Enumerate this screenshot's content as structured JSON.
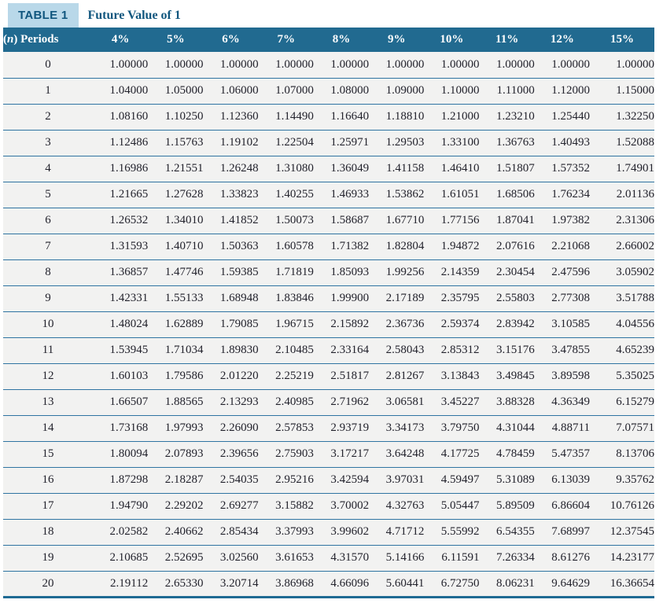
{
  "title": {
    "badge": "TABLE 1",
    "text": "Future Value of 1"
  },
  "table": {
    "periods_header": {
      "prefix": "(",
      "italic": "n",
      "suffix": ") Periods"
    },
    "rate_headers": [
      "4%",
      "5%",
      "6%",
      "7%",
      "8%",
      "9%",
      "10%",
      "11%",
      "12%",
      "15%"
    ],
    "rows": [
      {
        "period": "0",
        "values": [
          "1.00000",
          "1.00000",
          "1.00000",
          "1.00000",
          "1.00000",
          "1.00000",
          "1.00000",
          "1.00000",
          "1.00000",
          "1.00000"
        ]
      },
      {
        "period": "1",
        "values": [
          "1.04000",
          "1.05000",
          "1.06000",
          "1.07000",
          "1.08000",
          "1.09000",
          "1.10000",
          "1.11000",
          "1.12000",
          "1.15000"
        ]
      },
      {
        "period": "2",
        "values": [
          "1.08160",
          "1.10250",
          "1.12360",
          "1.14490",
          "1.16640",
          "1.18810",
          "1.21000",
          "1.23210",
          "1.25440",
          "1.32250"
        ]
      },
      {
        "period": "3",
        "values": [
          "1.12486",
          "1.15763",
          "1.19102",
          "1.22504",
          "1.25971",
          "1.29503",
          "1.33100",
          "1.36763",
          "1.40493",
          "1.52088"
        ]
      },
      {
        "period": "4",
        "values": [
          "1.16986",
          "1.21551",
          "1.26248",
          "1.31080",
          "1.36049",
          "1.41158",
          "1.46410",
          "1.51807",
          "1.57352",
          "1.74901"
        ]
      },
      {
        "period": "5",
        "values": [
          "1.21665",
          "1.27628",
          "1.33823",
          "1.40255",
          "1.46933",
          "1.53862",
          "1.61051",
          "1.68506",
          "1.76234",
          "2.01136"
        ]
      },
      {
        "period": "6",
        "values": [
          "1.26532",
          "1.34010",
          "1.41852",
          "1.50073",
          "1.58687",
          "1.67710",
          "1.77156",
          "1.87041",
          "1.97382",
          "2.31306"
        ]
      },
      {
        "period": "7",
        "values": [
          "1.31593",
          "1.40710",
          "1.50363",
          "1.60578",
          "1.71382",
          "1.82804",
          "1.94872",
          "2.07616",
          "2.21068",
          "2.66002"
        ]
      },
      {
        "period": "8",
        "values": [
          "1.36857",
          "1.47746",
          "1.59385",
          "1.71819",
          "1.85093",
          "1.99256",
          "2.14359",
          "2.30454",
          "2.47596",
          "3.05902"
        ]
      },
      {
        "period": "9",
        "values": [
          "1.42331",
          "1.55133",
          "1.68948",
          "1.83846",
          "1.99900",
          "2.17189",
          "2.35795",
          "2.55803",
          "2.77308",
          "3.51788"
        ]
      },
      {
        "period": "10",
        "values": [
          "1.48024",
          "1.62889",
          "1.79085",
          "1.96715",
          "2.15892",
          "2.36736",
          "2.59374",
          "2.83942",
          "3.10585",
          "4.04556"
        ]
      },
      {
        "period": "11",
        "values": [
          "1.53945",
          "1.71034",
          "1.89830",
          "2.10485",
          "2.33164",
          "2.58043",
          "2.85312",
          "3.15176",
          "3.47855",
          "4.65239"
        ]
      },
      {
        "period": "12",
        "values": [
          "1.60103",
          "1.79586",
          "2.01220",
          "2.25219",
          "2.51817",
          "2.81267",
          "3.13843",
          "3.49845",
          "3.89598",
          "5.35025"
        ]
      },
      {
        "period": "13",
        "values": [
          "1.66507",
          "1.88565",
          "2.13293",
          "2.40985",
          "2.71962",
          "3.06581",
          "3.45227",
          "3.88328",
          "4.36349",
          "6.15279"
        ]
      },
      {
        "period": "14",
        "values": [
          "1.73168",
          "1.97993",
          "2.26090",
          "2.57853",
          "2.93719",
          "3.34173",
          "3.79750",
          "4.31044",
          "4.88711",
          "7.07571"
        ]
      },
      {
        "period": "15",
        "values": [
          "1.80094",
          "2.07893",
          "2.39656",
          "2.75903",
          "3.17217",
          "3.64248",
          "4.17725",
          "4.78459",
          "5.47357",
          "8.13706"
        ]
      },
      {
        "period": "16",
        "values": [
          "1.87298",
          "2.18287",
          "2.54035",
          "2.95216",
          "3.42594",
          "3.97031",
          "4.59497",
          "5.31089",
          "6.13039",
          "9.35762"
        ]
      },
      {
        "period": "17",
        "values": [
          "1.94790",
          "2.29202",
          "2.69277",
          "3.15882",
          "3.70002",
          "4.32763",
          "5.05447",
          "5.89509",
          "6.86604",
          "10.76126"
        ]
      },
      {
        "period": "18",
        "values": [
          "2.02582",
          "2.40662",
          "2.85434",
          "3.37993",
          "3.99602",
          "4.71712",
          "5.55992",
          "6.54355",
          "7.68997",
          "12.37545"
        ]
      },
      {
        "period": "19",
        "values": [
          "2.10685",
          "2.52695",
          "3.02560",
          "3.61653",
          "4.31570",
          "5.14166",
          "6.11591",
          "7.26334",
          "8.61276",
          "14.23177"
        ]
      },
      {
        "period": "20",
        "values": [
          "2.19112",
          "2.65330",
          "3.20714",
          "3.86968",
          "4.66096",
          "5.60441",
          "6.72750",
          "8.06231",
          "9.64629",
          "16.36654"
        ]
      }
    ]
  },
  "colors": {
    "header_bg": "#216a90",
    "badge_bg": "#b9d8e9",
    "accent_text": "#10567e",
    "row_bg": "#f2f2f1",
    "row_divider": "#2f74a2",
    "bottom_border": "#1f6b93",
    "cell_text": "#22222c"
  }
}
